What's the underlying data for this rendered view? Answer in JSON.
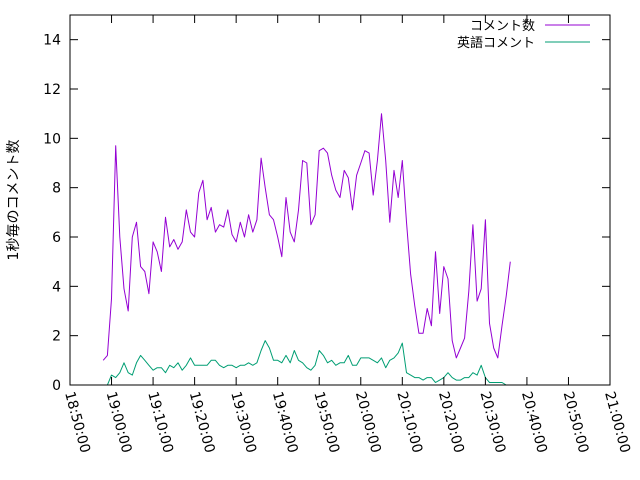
{
  "chart_data": {
    "type": "line",
    "title": "",
    "xlabel": "",
    "ylabel": "1秒毎のコメント数",
    "xlim": [
      "18:50:00",
      "21:00:00"
    ],
    "ylim": [
      0,
      15
    ],
    "xticks": [
      "18:50:00",
      "19:00:00",
      "19:10:00",
      "19:20:00",
      "19:30:00",
      "19:40:00",
      "19:50:00",
      "20:00:00",
      "20:10:00",
      "20:20:00",
      "20:30:00",
      "20:40:00",
      "20:50:00",
      "21:00:00"
    ],
    "yticks": [
      0,
      2,
      4,
      6,
      8,
      10,
      12,
      14
    ],
    "grid": false,
    "legend_position": "top-right",
    "sample_interval_seconds": 60,
    "series": [
      {
        "name": "コメント数",
        "color": "#9400d3",
        "x_start": "18:58:00",
        "values": [
          1.0,
          1.2,
          3.5,
          9.7,
          6.0,
          3.9,
          3.0,
          6.0,
          6.6,
          4.8,
          4.6,
          3.7,
          5.8,
          5.4,
          4.6,
          6.8,
          5.6,
          5.9,
          5.5,
          5.8,
          7.1,
          6.2,
          6.0,
          7.8,
          8.3,
          6.7,
          7.2,
          6.2,
          6.5,
          6.4,
          7.1,
          6.1,
          5.8,
          6.6,
          6.0,
          6.9,
          6.2,
          6.7,
          9.2,
          8.0,
          6.9,
          6.7,
          6.0,
          5.2,
          7.6,
          6.2,
          5.8,
          7.1,
          9.1,
          9.0,
          6.5,
          6.9,
          9.5,
          9.6,
          9.4,
          8.5,
          7.9,
          7.6,
          8.7,
          8.4,
          7.1,
          8.5,
          9.0,
          9.5,
          9.4,
          7.7,
          9.1,
          11.0,
          9.1,
          6.6,
          8.7,
          7.6,
          9.1,
          6.6,
          4.5,
          3.2,
          2.1,
          2.1,
          3.1,
          2.4,
          5.4,
          2.9,
          4.8,
          4.3,
          1.8,
          1.1,
          1.5,
          1.9,
          3.8,
          6.5,
          3.4,
          3.9,
          6.7,
          2.5,
          1.5,
          1.1,
          2.4,
          3.6,
          5.0
        ]
      },
      {
        "name": "英語コメント",
        "color": "#009e73",
        "x_start": "18:59:00",
        "values": [
          0.0,
          0.4,
          0.3,
          0.5,
          0.9,
          0.5,
          0.4,
          0.9,
          1.2,
          1.0,
          0.8,
          0.6,
          0.7,
          0.7,
          0.5,
          0.8,
          0.7,
          0.9,
          0.6,
          0.8,
          1.1,
          0.8,
          0.8,
          0.8,
          0.8,
          1.0,
          1.0,
          0.8,
          0.7,
          0.8,
          0.8,
          0.7,
          0.8,
          0.8,
          0.9,
          0.8,
          0.9,
          1.4,
          1.8,
          1.5,
          1.0,
          1.0,
          0.9,
          1.2,
          0.9,
          1.4,
          1.0,
          0.9,
          0.7,
          0.6,
          0.8,
          1.4,
          1.2,
          0.9,
          1.0,
          0.8,
          0.9,
          0.9,
          1.2,
          0.8,
          0.8,
          1.1,
          1.1,
          1.1,
          1.0,
          0.9,
          1.1,
          0.7,
          1.0,
          1.1,
          1.3,
          1.7,
          0.5,
          0.4,
          0.3,
          0.3,
          0.2,
          0.3,
          0.3,
          0.1,
          0.2,
          0.3,
          0.5,
          0.3,
          0.2,
          0.2,
          0.3,
          0.3,
          0.5,
          0.4,
          0.8,
          0.3,
          0.1,
          0.1,
          0.1,
          0.1,
          0.0
        ]
      }
    ]
  }
}
